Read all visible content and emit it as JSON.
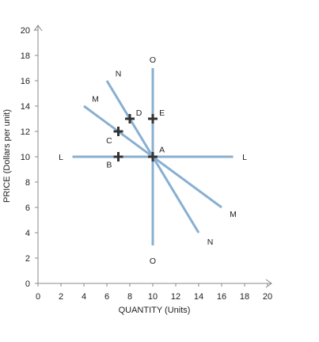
{
  "chart_data": {
    "type": "line",
    "title": "",
    "xlabel": "QUANTITY (Units)",
    "ylabel": "PRICE (Dollars per unit)",
    "xlim": [
      0,
      20
    ],
    "ylim": [
      0,
      20
    ],
    "xticks": [
      0,
      2,
      4,
      6,
      8,
      10,
      12,
      14,
      16,
      18,
      20
    ],
    "yticks": [
      0,
      2,
      4,
      6,
      8,
      10,
      12,
      14,
      16,
      18,
      20
    ],
    "grid": false,
    "line_color": "#88afd1",
    "marker_color": "#333333",
    "series": [
      {
        "name": "L",
        "points": [
          [
            3,
            10
          ],
          [
            17,
            10
          ]
        ],
        "labels": [
          {
            "text": "L",
            "at": [
              2,
              10
            ]
          },
          {
            "text": "L",
            "at": [
              18,
              10
            ]
          }
        ]
      },
      {
        "name": "M",
        "points": [
          [
            4,
            14
          ],
          [
            16,
            6
          ]
        ],
        "labels": [
          {
            "text": "M",
            "at": [
              5,
              14.6
            ]
          },
          {
            "text": "M",
            "at": [
              17,
              5.5
            ]
          }
        ]
      },
      {
        "name": "N",
        "points": [
          [
            6,
            16
          ],
          [
            14,
            4
          ]
        ],
        "labels": [
          {
            "text": "N",
            "at": [
              7,
              16.6
            ]
          },
          {
            "text": "N",
            "at": [
              15,
              3.3
            ]
          }
        ]
      },
      {
        "name": "O",
        "points": [
          [
            10,
            17
          ],
          [
            10,
            3
          ]
        ],
        "labels": [
          {
            "text": "O",
            "at": [
              10,
              17.7
            ]
          },
          {
            "text": "O",
            "at": [
              10,
              1.8
            ]
          }
        ]
      }
    ],
    "points": [
      {
        "label": "A",
        "x": 10,
        "y": 10,
        "label_at": [
          10.8,
          10.6
        ]
      },
      {
        "label": "B",
        "x": 7,
        "y": 10,
        "label_at": [
          6.2,
          9.4
        ]
      },
      {
        "label": "C",
        "x": 7,
        "y": 12,
        "label_at": [
          6.2,
          11.3
        ]
      },
      {
        "label": "D",
        "x": 8,
        "y": 13,
        "label_at": [
          8.8,
          13.5
        ]
      },
      {
        "label": "E",
        "x": 10,
        "y": 13,
        "label_at": [
          10.8,
          13.5
        ]
      }
    ]
  }
}
